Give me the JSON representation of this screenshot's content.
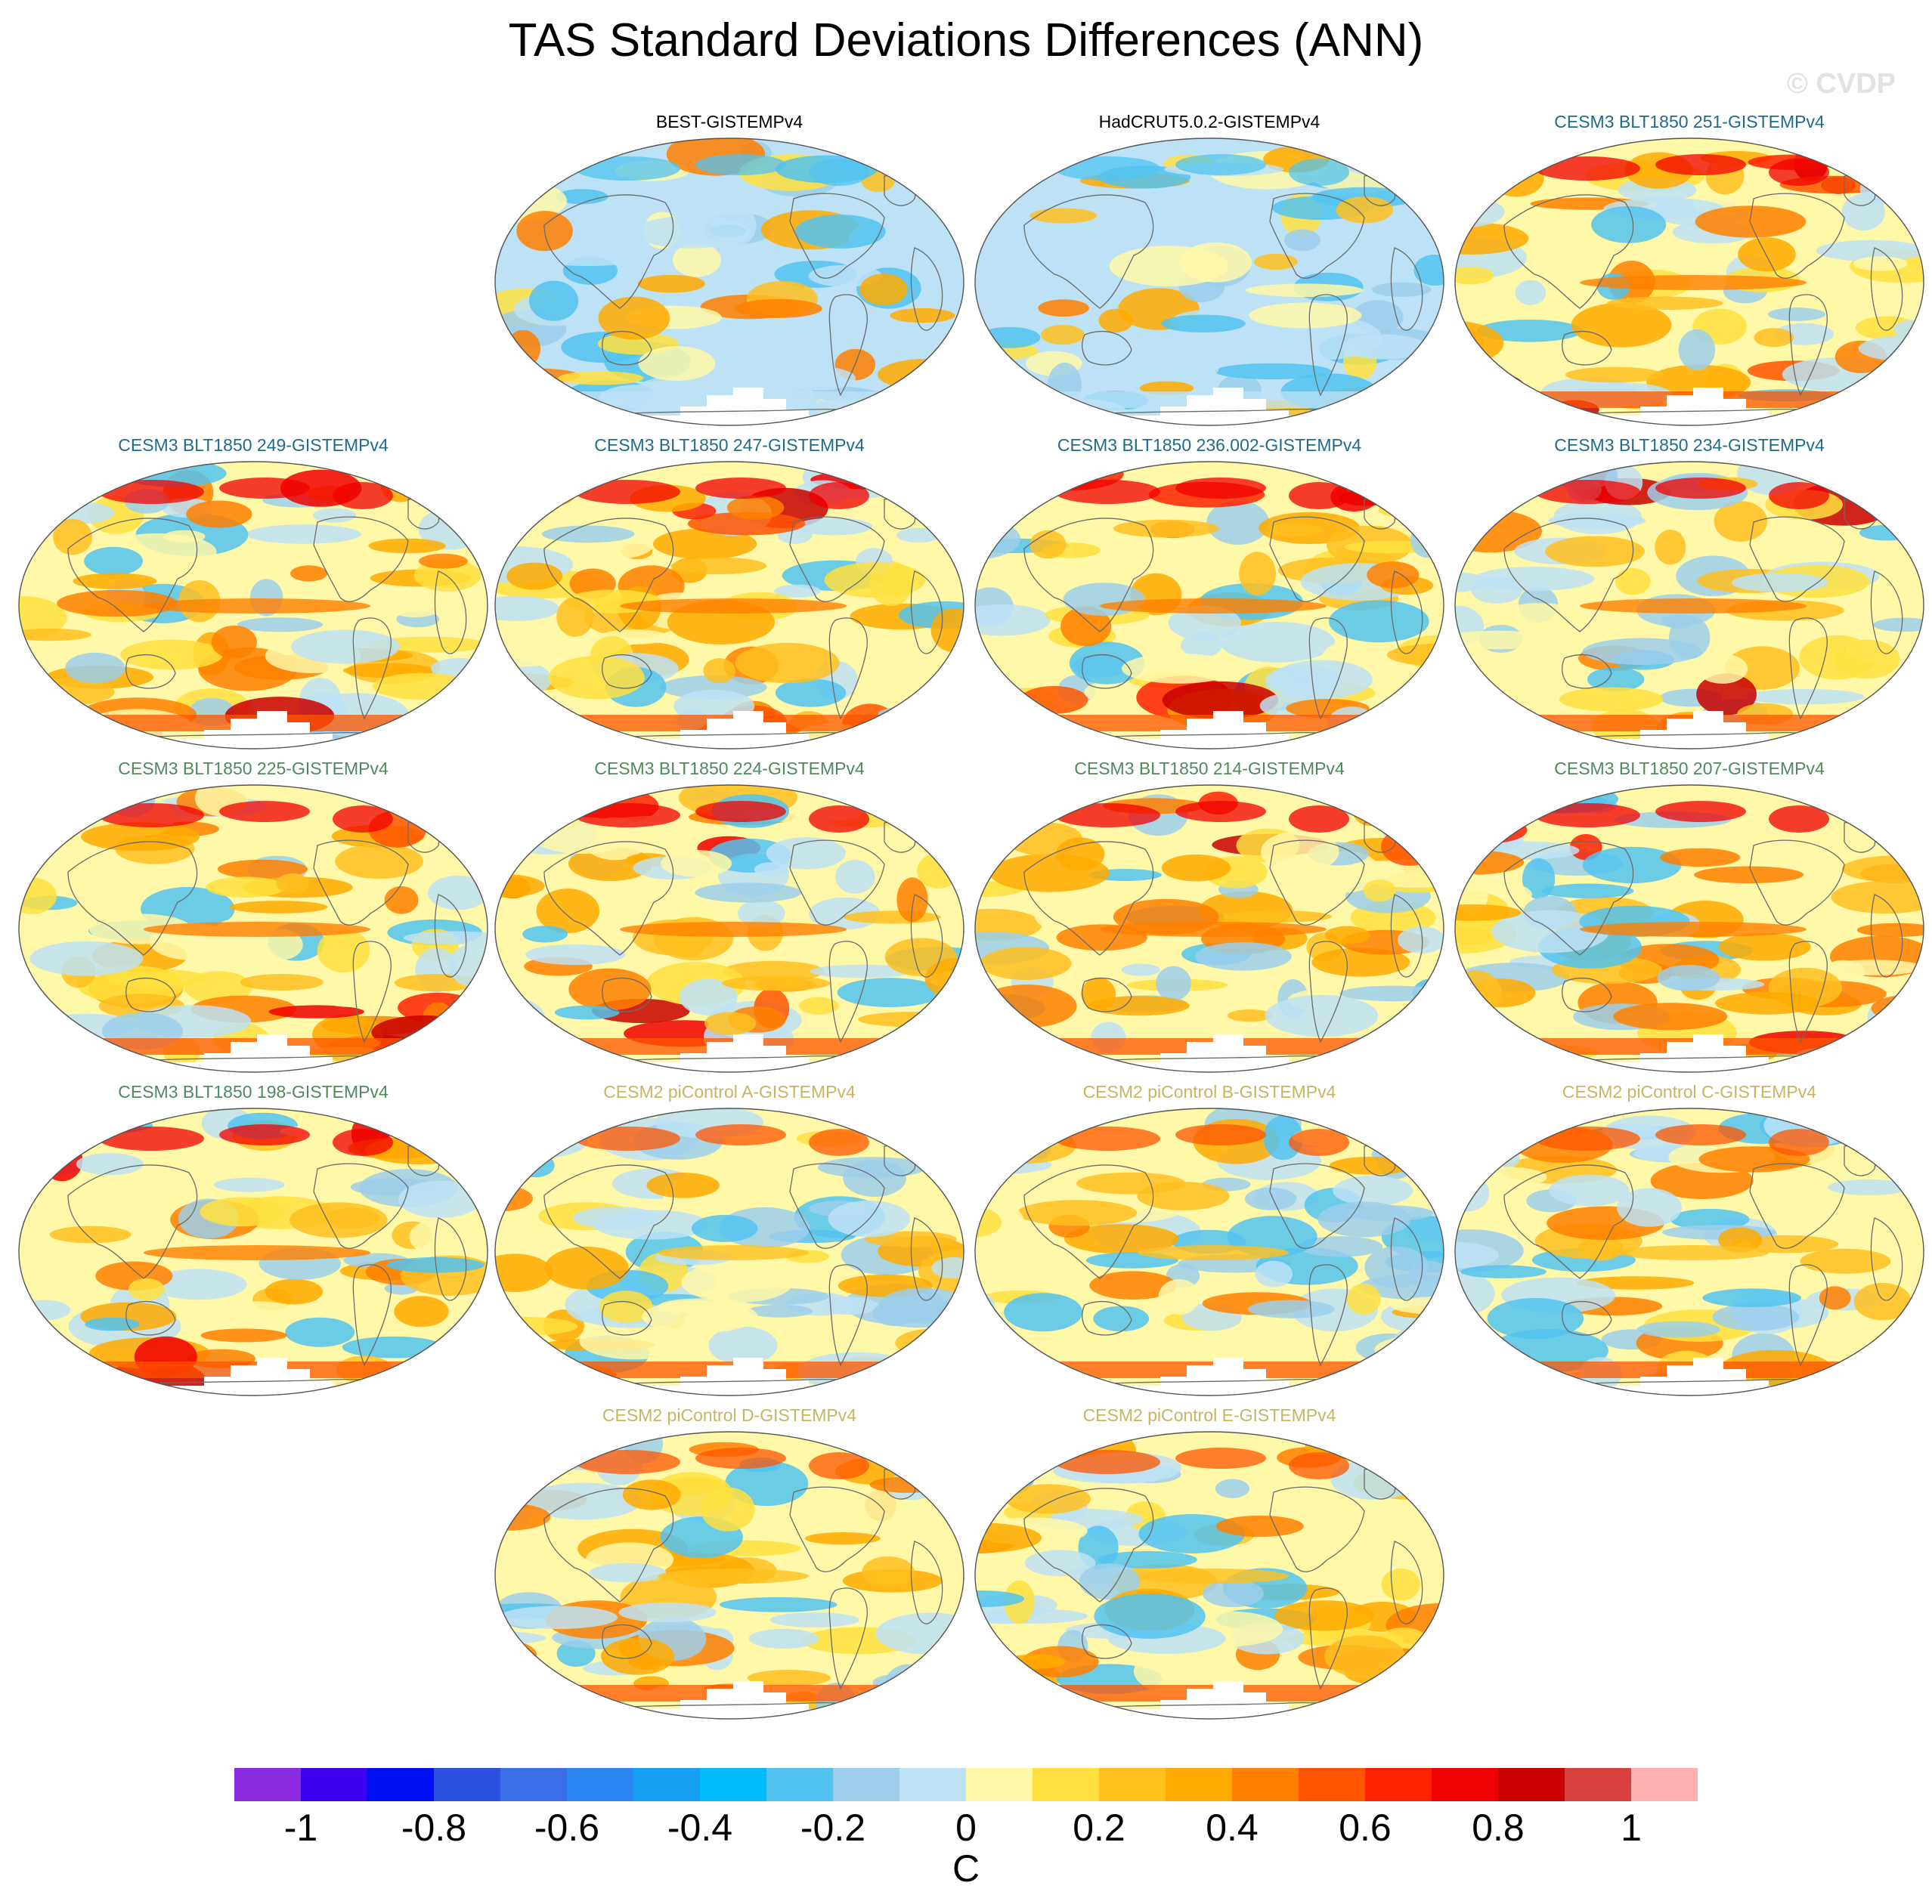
{
  "figure": {
    "title": "TAS Standard Deviations Differences (ANN)",
    "watermark": "© CVDP",
    "units": "C"
  },
  "panels": [
    {
      "title": "BEST-GISTEMPv4",
      "color": "#000000",
      "bias": "cool"
    },
    {
      "title": "HadCRUT5.0.2-GISTEMPv4",
      "color": "#000000",
      "bias": "cool"
    },
    {
      "title": "CESM3 BLT1850 251-GISTEMPv4",
      "color": "#1f6b8a",
      "bias": "warm"
    },
    {
      "title": "CESM3 BLT1850 249-GISTEMPv4",
      "color": "#1f6b8a",
      "bias": "warm"
    },
    {
      "title": "CESM3 BLT1850 247-GISTEMPv4",
      "color": "#1f6b8a",
      "bias": "warm"
    },
    {
      "title": "CESM3 BLT1850 236.002-GISTEMPv4",
      "color": "#1f6b8a",
      "bias": "warm"
    },
    {
      "title": "CESM3 BLT1850 234-GISTEMPv4",
      "color": "#1f6b8a",
      "bias": "warm"
    },
    {
      "title": "CESM3 BLT1850 225-GISTEMPv4",
      "color": "#4f8a5c",
      "bias": "warm"
    },
    {
      "title": "CESM3 BLT1850 224-GISTEMPv4",
      "color": "#4f8a5c",
      "bias": "warm"
    },
    {
      "title": "CESM3 BLT1850 214-GISTEMPv4",
      "color": "#4f8a5c",
      "bias": "warm"
    },
    {
      "title": "CESM3 BLT1850 207-GISTEMPv4",
      "color": "#4f8a5c",
      "bias": "warm"
    },
    {
      "title": "CESM3 BLT1850 198-GISTEMPv4",
      "color": "#4f8a5c",
      "bias": "warm"
    },
    {
      "title": "CESM2 piControl A-GISTEMPv4",
      "color": "#c8b560",
      "bias": "mixed"
    },
    {
      "title": "CESM2 piControl B-GISTEMPv4",
      "color": "#c8b560",
      "bias": "mixed"
    },
    {
      "title": "CESM2 piControl C-GISTEMPv4",
      "color": "#c8b560",
      "bias": "mixed"
    },
    {
      "title": "CESM2 piControl D-GISTEMPv4",
      "color": "#c8b560",
      "bias": "mixed"
    },
    {
      "title": "CESM2 piControl E-GISTEMPv4",
      "color": "#c8b560",
      "bias": "mixed"
    }
  ],
  "colorbar": {
    "colors": [
      "#8a2be2",
      "#4000f0",
      "#0010f5",
      "#2a50e0",
      "#3c6ee8",
      "#2e86f5",
      "#159ff5",
      "#00bcf8",
      "#52c3f0",
      "#9ccfeb",
      "#bde2f5",
      "#fff8a8",
      "#ffe040",
      "#ffc020",
      "#ffaa00",
      "#ff8000",
      "#ff5500",
      "#ff2200",
      "#f00000",
      "#c80000",
      "#d84040",
      "#ffb0b0"
    ],
    "labels": [
      "-1",
      "-0.8",
      "-0.6",
      "-0.4",
      "-0.2",
      "0",
      "0.2",
      "0.4",
      "0.6",
      "0.8",
      "1"
    ]
  }
}
